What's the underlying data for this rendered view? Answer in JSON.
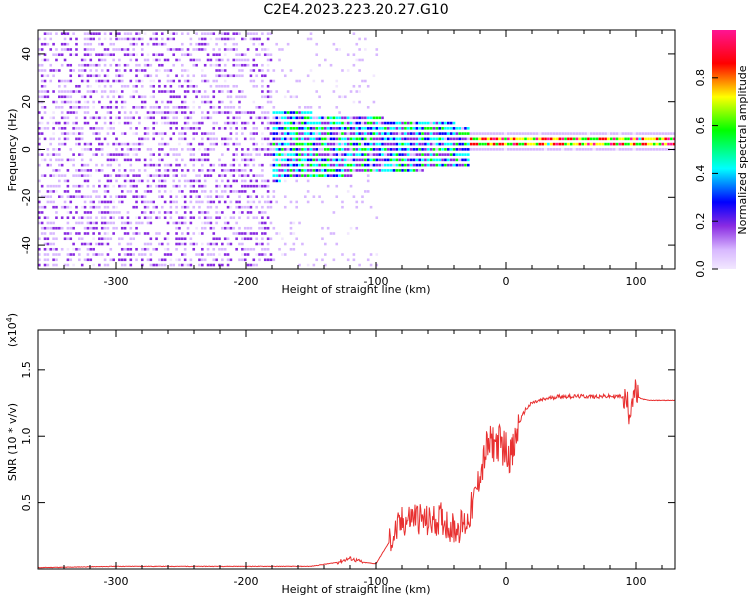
{
  "title": "C2E4.2023.223.20.27.G10",
  "chart_data": [
    {
      "type": "heatmap",
      "xlabel": "Height of straight line (km)",
      "ylabel": "Frequency (Hz)",
      "xlim": [
        -360,
        130
      ],
      "ylim": [
        -50,
        50
      ],
      "xticks": [
        -300,
        -200,
        -100,
        0,
        100
      ],
      "yticks": [
        -40,
        -20,
        0,
        20,
        40
      ],
      "colorbar": {
        "label": "Normalized spectral amplitude",
        "range": [
          0,
          1
        ],
        "ticks": [
          0.0,
          0.2,
          0.4,
          0.6,
          0.8
        ],
        "colors": [
          "#f2e8ff",
          "#d8b8ff",
          "#8a2be2",
          "#0000ff",
          "#00ffff",
          "#00ff00",
          "#ffff00",
          "#ff0000",
          "#ff1493"
        ]
      },
      "regions": [
        {
          "from": -360,
          "to": -180,
          "description_level": "broadband noise, amplitude 0.1-0.3 across all frequencies"
        },
        {
          "from": -180,
          "to": -30,
          "description_level": "band near 0 Hz (±15 Hz), amplitude 0.2-0.7"
        },
        {
          "from": -30,
          "to": 130,
          "description_level": "narrow line at ~2 Hz, amplitude up to 1.0"
        }
      ]
    },
    {
      "type": "line",
      "xlabel": "Height of straight line (km)",
      "ylabel": "SNR (10 * v/v)",
      "yscale_label": "(x10",
      "yscale_exp": "4",
      "yscale_close": ")",
      "xlim": [
        -360,
        130
      ],
      "ylim": [
        0,
        1.8
      ],
      "xticks": [
        -300,
        -200,
        -100,
        0,
        100
      ],
      "yticks": [
        0.5,
        1.0,
        1.5
      ],
      "ytick_labels": [
        "0.5",
        "1.0",
        "1.5"
      ],
      "series": [
        {
          "color": "#e83030",
          "x": [
            -360,
            -300,
            -200,
            -150,
            -130,
            -120,
            -110,
            -100,
            -90,
            -80,
            -70,
            -60,
            -50,
            -40,
            -30,
            -25,
            -20,
            -15,
            -10,
            -5,
            0,
            5,
            10,
            15,
            20,
            30,
            40,
            60,
            80,
            90,
            95,
            98,
            100,
            105,
            110,
            130
          ],
          "y": [
            0.01,
            0.02,
            0.02,
            0.02,
            0.05,
            0.08,
            0.05,
            0.04,
            0.2,
            0.35,
            0.4,
            0.35,
            0.38,
            0.3,
            0.35,
            0.5,
            0.7,
            0.9,
            0.95,
            0.95,
            0.9,
            0.85,
            1.1,
            1.2,
            1.25,
            1.28,
            1.3,
            1.3,
            1.3,
            1.3,
            1.2,
            1.35,
            1.3,
            1.28,
            1.27,
            1.27
          ]
        }
      ]
    }
  ]
}
